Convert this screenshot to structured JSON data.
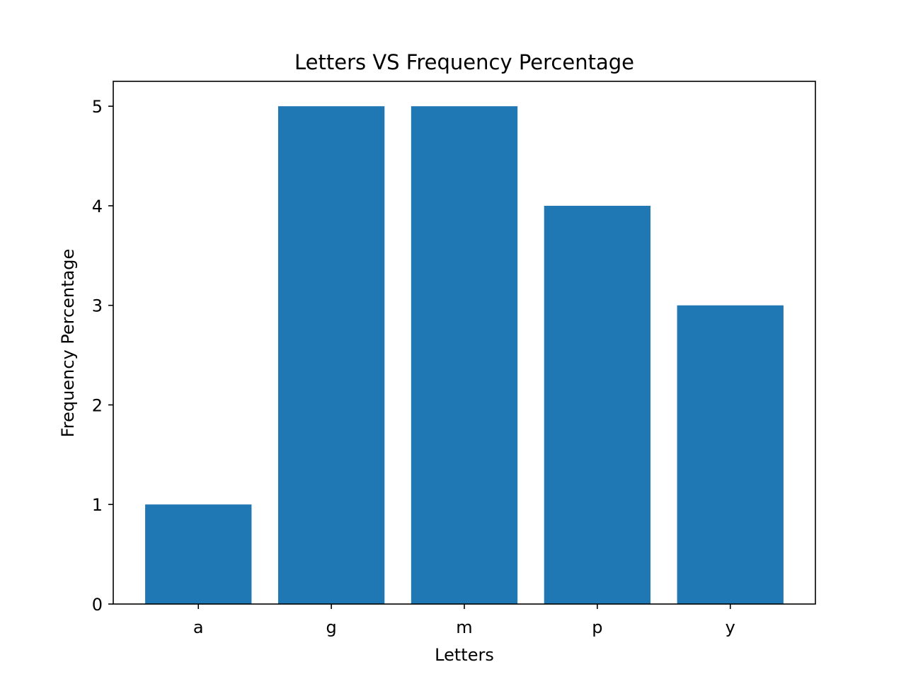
{
  "chart_data": {
    "type": "bar",
    "title": "Letters VS Frequency Percentage",
    "xlabel": "Letters",
    "ylabel": "Frequency Percentage",
    "categories": [
      "a",
      "g",
      "m",
      "p",
      "y"
    ],
    "values": [
      1,
      5,
      5,
      4,
      3
    ],
    "ylim": [
      0,
      5.25
    ],
    "yticks": [
      "0",
      "1",
      "2",
      "3",
      "4",
      "5"
    ],
    "bar_color": "#1f77b4",
    "grid": false,
    "legend": "none"
  }
}
